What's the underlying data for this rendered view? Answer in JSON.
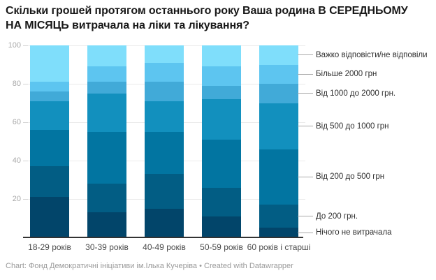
{
  "header": {
    "title": "Скільки грошей протягом останнього року Ваша родина В СЕРЕДНЬОМУ НА МІСЯЦЬ витрачала на ліки та лікування?"
  },
  "chart_data": {
    "type": "bar",
    "stacked": true,
    "orientation": "vertical",
    "unit": "%",
    "categories": [
      "18-29 років",
      "30-39 років",
      "40-49 років",
      "50-59 років",
      "60 років і старші"
    ],
    "series_order": "bottom-to-top",
    "series": [
      {
        "name": "Нічого не витрачала",
        "color": "#02456a",
        "values": [
          21,
          13,
          15,
          11,
          5
        ]
      },
      {
        "name": "До 200 грн.",
        "color": "#025d84",
        "values": [
          16,
          15,
          18,
          15,
          12
        ]
      },
      {
        "name": "Від 200 до 500 грн",
        "color": "#0275a1",
        "values": [
          19,
          27,
          22,
          25,
          29
        ]
      },
      {
        "name": "Від 500 до 1000 грн",
        "color": "#1290be",
        "values": [
          15,
          20,
          16,
          21,
          24
        ]
      },
      {
        "name": "Від 1000 до 2000 грн.",
        "color": "#41aad8",
        "values": [
          5,
          6,
          10,
          7,
          10
        ]
      },
      {
        "name": "Більше 2000 грн",
        "color": "#5dc5f0",
        "values": [
          5,
          8,
          10,
          10,
          10
        ]
      },
      {
        "name": "Важко відповісти/не відповіли",
        "color": "#7fdefb",
        "values": [
          19,
          11,
          9,
          11,
          10
        ]
      }
    ],
    "y_ticks": [
      20,
      40,
      60,
      80,
      100
    ],
    "ylim": [
      0,
      100
    ],
    "grid": true,
    "legend_position": "right"
  },
  "footer": {
    "text": "Chart: Фонд Демократичні ініціативи ім.Ілька Кучеріва • Created with Datawrapper"
  }
}
